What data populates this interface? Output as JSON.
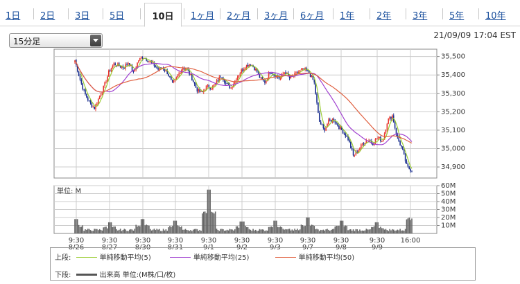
{
  "tabs": [
    {
      "label": "1日",
      "active": false
    },
    {
      "label": "2日",
      "active": false
    },
    {
      "label": "3日",
      "active": false
    },
    {
      "label": "5日",
      "active": false
    },
    {
      "label": "10日",
      "active": true
    },
    {
      "label": "1ヶ月",
      "active": false
    },
    {
      "label": "2ヶ月",
      "active": false
    },
    {
      "label": "3ヶ月",
      "active": false
    },
    {
      "label": "6ヶ月",
      "active": false
    },
    {
      "label": "1年",
      "active": false
    },
    {
      "label": "2年",
      "active": false
    },
    {
      "label": "3年",
      "active": false
    },
    {
      "label": "5年",
      "active": false
    },
    {
      "label": "10年",
      "active": false
    }
  ],
  "interval_select": {
    "value": "15分足"
  },
  "timestamp": "21/09/09 17:04 EST",
  "colors": {
    "up_candle": "#e8382f",
    "down_candle": "#1b2f8f",
    "ma5": "#9acd32",
    "ma25": "#a040d0",
    "ma50": "#e06040",
    "volume": "#666666",
    "grid": "#cccccc"
  },
  "chart_data": [
    {
      "type": "candlestick",
      "price_axis": {
        "ticks": [
          "35,500",
          "35,400",
          "35,300",
          "35,200",
          "35,100",
          "35,000",
          "34,900"
        ],
        "ylim": [
          34840,
          35540
        ]
      },
      "x_tick_labels": [
        {
          "time": "9:30",
          "date": "8/26"
        },
        {
          "time": "9:30",
          "date": "8/27"
        },
        {
          "time": "9:30",
          "date": "8/30"
        },
        {
          "time": "9:30",
          "date": "8/31"
        },
        {
          "time": "9:30",
          "date": "9/1"
        },
        {
          "time": "9:30",
          "date": "9/2"
        },
        {
          "time": "9:30",
          "date": "9/3"
        },
        {
          "time": "9:30",
          "date": "9/7"
        },
        {
          "time": "9:30",
          "date": "9/8"
        },
        {
          "time": "9:30",
          "date": "9/9"
        },
        {
          "time": "16:00",
          "date": ""
        }
      ],
      "close_path": [
        35480,
        35380,
        35300,
        35250,
        35220,
        35280,
        35340,
        35420,
        35460,
        35450,
        35440,
        35470,
        35410,
        35480,
        35500,
        35480,
        35460,
        35430,
        35440,
        35410,
        35350,
        35390,
        35440,
        35430,
        35380,
        35320,
        35300,
        35340,
        35330,
        35360,
        35400,
        35350,
        35330,
        35380,
        35420,
        35450,
        35460,
        35430,
        35380,
        35360,
        35420,
        35400,
        35380,
        35420,
        35380,
        35400,
        35420,
        35430,
        35410,
        35360,
        35150,
        35100,
        35150,
        35160,
        35120,
        35090,
        35050,
        34960,
        34990,
        35030,
        35050,
        35030,
        35060,
        35040,
        35150,
        35180,
        35060,
        35000,
        34900,
        34880
      ],
      "series": [
        {
          "name": "単純移動平均(5)",
          "color": "#9acd32"
        },
        {
          "name": "単純移動平均(25)",
          "color": "#a040d0"
        },
        {
          "name": "単純移動平均(50)",
          "color": "#e06040"
        }
      ]
    },
    {
      "type": "bar",
      "title": "単位: M",
      "volume_axis": {
        "ticks": [
          "60M",
          "50M",
          "40M",
          "30M",
          "20M",
          "10M"
        ],
        "ylim": [
          0,
          60
        ]
      },
      "open_spikes_M": [
        18,
        14,
        18,
        16,
        55,
        15,
        16,
        20,
        16,
        14
      ],
      "close_spike_M": 20
    }
  ],
  "legend": {
    "upper_label": "上段:",
    "lower_label": "下段:",
    "ma5": "単純移動平均(5)",
    "ma25": "単純移動平均(25)",
    "ma50": "単純移動平均(50)",
    "volume": "出来高 単位:(M株/口/枚)"
  }
}
